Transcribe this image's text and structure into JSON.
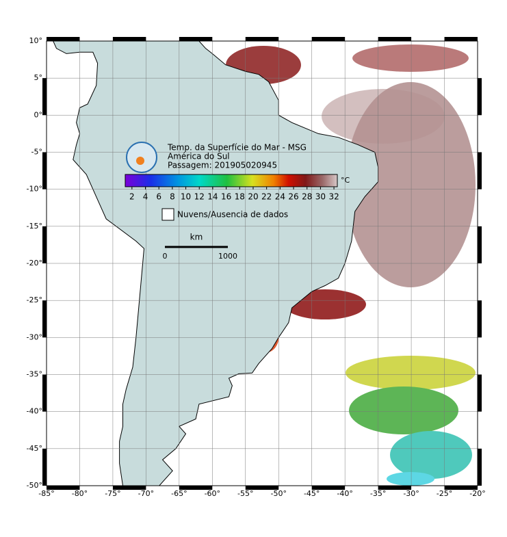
{
  "map": {
    "title": "Temp. da Superfície do Mar - MSG",
    "subtitle": "América do Sul",
    "pass": "Passagem: 201905020945",
    "legend_label": "Nuvens/Ausencia de dados",
    "colorbar": {
      "unit": "°C",
      "range": [
        1,
        32.5
      ],
      "ticks": [
        2,
        4,
        6,
        8,
        10,
        12,
        14,
        16,
        18,
        20,
        22,
        24,
        26,
        28,
        30,
        32
      ]
    },
    "scale_bar": {
      "unit": "km",
      "labels": [
        "0",
        "1000"
      ]
    },
    "xlim": [
      -85,
      -20
    ],
    "ylim": [
      -50,
      10
    ],
    "xticks": [
      {
        "value": -85,
        "label": "-85°"
      },
      {
        "value": -80,
        "label": "-80°"
      },
      {
        "value": -75,
        "label": "-75°"
      },
      {
        "value": -70,
        "label": "-70°"
      },
      {
        "value": -65,
        "label": "-65°"
      },
      {
        "value": -60,
        "label": "-60°"
      },
      {
        "value": -55,
        "label": "-55°"
      },
      {
        "value": -50,
        "label": "-50°"
      },
      {
        "value": -45,
        "label": "-45°"
      },
      {
        "value": -40,
        "label": "-40°"
      },
      {
        "value": -35,
        "label": "-35°"
      },
      {
        "value": -30,
        "label": "-30°"
      },
      {
        "value": -25,
        "label": "-25°"
      },
      {
        "value": -20,
        "label": "-20°"
      }
    ],
    "yticks": [
      {
        "value": 10,
        "label": "10°"
      },
      {
        "value": 5,
        "label": "5°"
      },
      {
        "value": 0,
        "label": "0°"
      },
      {
        "value": -5,
        "label": "-5°"
      },
      {
        "value": -10,
        "label": "-10°"
      },
      {
        "value": -15,
        "label": "-15°"
      },
      {
        "value": -20,
        "label": "-20°"
      },
      {
        "value": -25,
        "label": "-25°"
      },
      {
        "value": -30,
        "label": "-30°"
      },
      {
        "value": -35,
        "label": "-35°"
      },
      {
        "value": -40,
        "label": "-40°"
      },
      {
        "value": -45,
        "label": "-45°"
      },
      {
        "value": -50,
        "label": "-50°"
      }
    ]
  }
}
